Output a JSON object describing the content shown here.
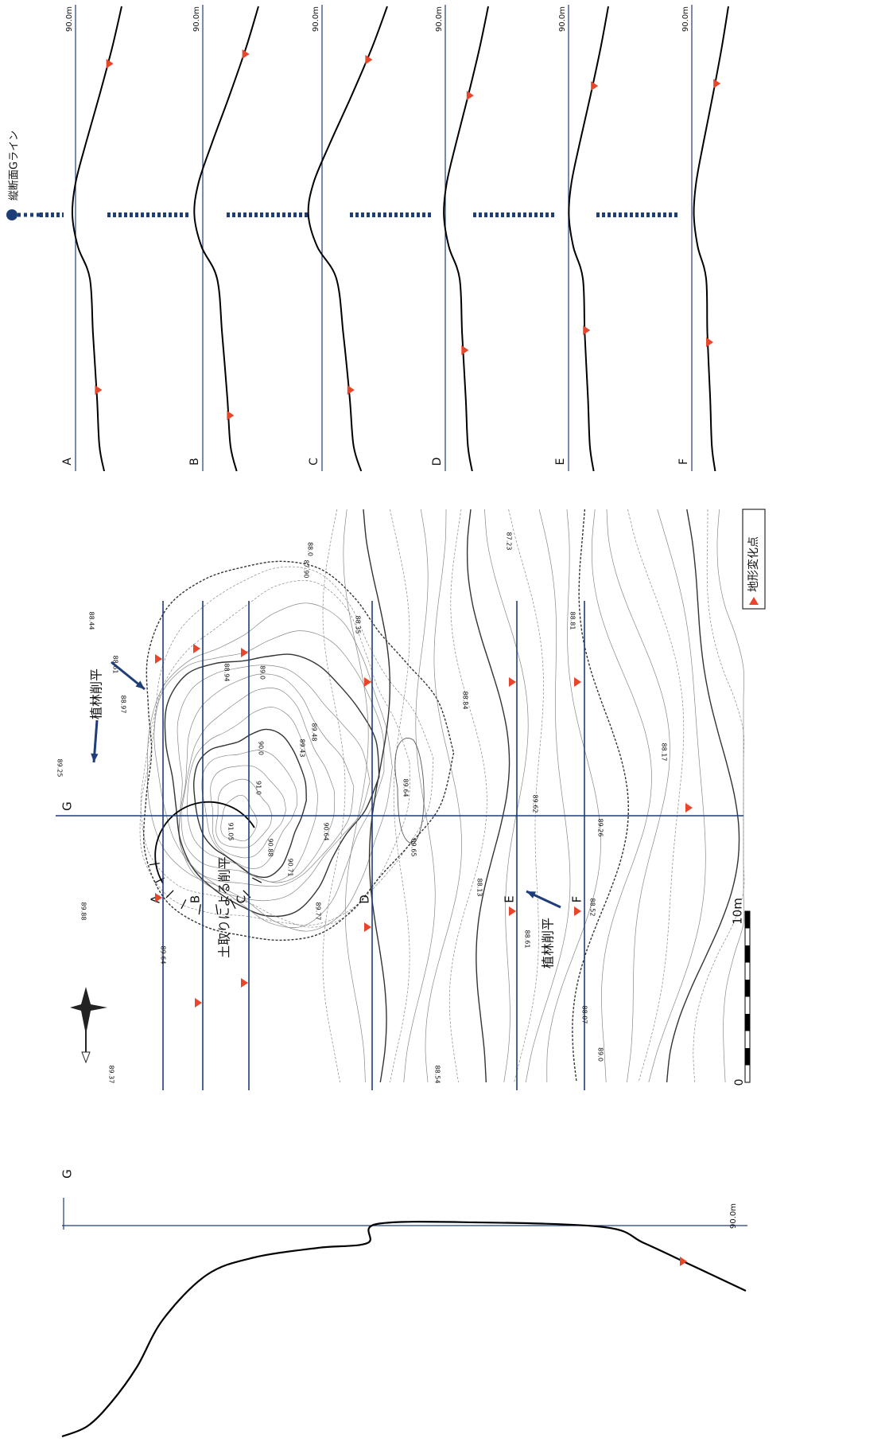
{
  "profile_title": "縦断面Gライン",
  "profiles": [
    {
      "label": "A",
      "datum": "90.0m"
    },
    {
      "label": "B",
      "datum": "90.0m"
    },
    {
      "label": "C",
      "datum": "90.0m"
    },
    {
      "label": "D",
      "datum": "90.0m"
    },
    {
      "label": "E",
      "datum": "90.0m"
    },
    {
      "label": "F",
      "datum": "90.0m"
    }
  ],
  "map": {
    "section_labels": [
      "A",
      "B",
      "C",
      "D",
      "E",
      "F"
    ],
    "g_label": "G",
    "annotations": [
      "植林削平",
      "土取りによる削平",
      "植林削平"
    ],
    "elevations": [
      "88.44",
      "88.61",
      "88.97",
      "89.25",
      "88.94",
      "89.0",
      "88.35",
      "87.90",
      "88.0",
      "87.23",
      "89.48",
      "89.43",
      "90.0",
      "91.0",
      "91.05",
      "90.88",
      "90.71",
      "90.64",
      "89.64",
      "89.65",
      "89.62",
      "88.84",
      "88.81",
      "88.17",
      "89.26",
      "88.13",
      "88.61",
      "88.52",
      "88.07",
      "89.0",
      "88.54",
      "89.37",
      "89.64",
      "89.88",
      "89.77"
    ],
    "scale": {
      "zero": "0",
      "length": "10m"
    }
  },
  "legend": "地形変化点",
  "g_profile": {
    "label": "G",
    "datum": "90.0m"
  }
}
